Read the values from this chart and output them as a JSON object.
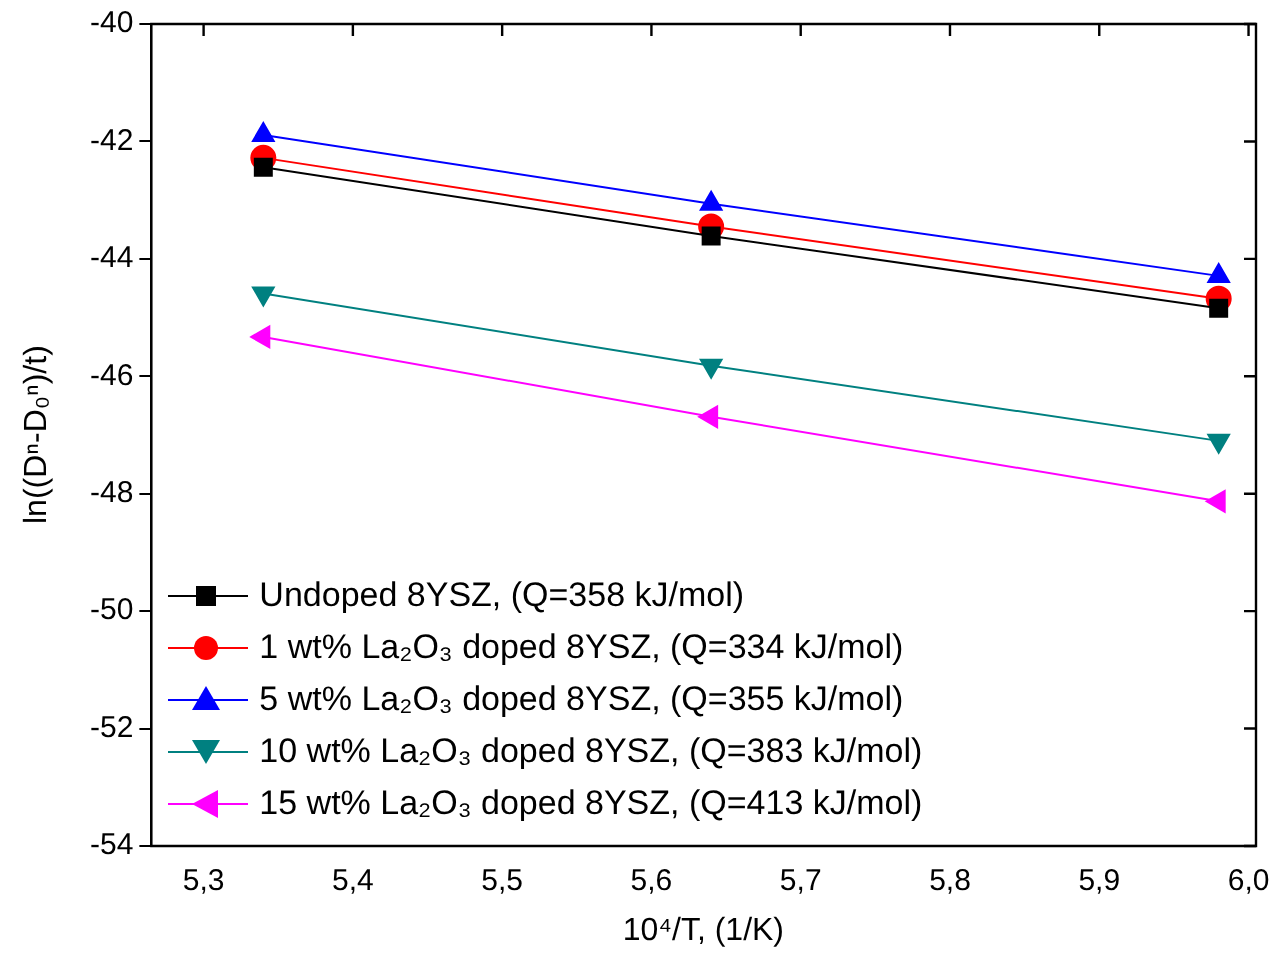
{
  "chart_data": {
    "type": "line",
    "xlabel": "10⁴/T, (1/K)",
    "ylabel": "ln((Dⁿ-D₀ⁿ)/t)",
    "x": [
      5.34,
      5.64,
      5.98
    ],
    "series": [
      {
        "name": "Undoped 8YSZ, (Q=358 kJ/mol)",
        "color": "#000000",
        "marker": "square",
        "values": [
          -42.44,
          -43.61,
          -44.84
        ]
      },
      {
        "name": "1 wt% La₂O₃ doped 8YSZ, (Q=334 kJ/mol)",
        "color": "#ff0000",
        "marker": "circle",
        "values": [
          -42.28,
          -43.45,
          -44.68
        ]
      },
      {
        "name": "5 wt% La₂O₃ doped 8YSZ, (Q=355 kJ/mol)",
        "color": "#0000ff",
        "marker": "triangle",
        "values": [
          -41.89,
          -43.06,
          -44.29
        ]
      },
      {
        "name": "10 wt% La₂O₃ doped 8YSZ, (Q=383 kJ/mol)",
        "color": "#008080",
        "marker": "triangle-down",
        "values": [
          -44.59,
          -45.82,
          -47.1
        ]
      },
      {
        "name": "15 wt% La₂O₃ doped 8YSZ, (Q=413 kJ/mol)",
        "color": "#ff00ff",
        "marker": "triangle-left",
        "values": [
          -45.33,
          -46.69,
          -48.13
        ]
      }
    ],
    "xlim": [
      5.265,
      6.005
    ],
    "xticks": [
      {
        "value": 5.3,
        "label": "5,3"
      },
      {
        "value": 5.4,
        "label": "5,4"
      },
      {
        "value": 5.5,
        "label": "5,5"
      },
      {
        "value": 5.6,
        "label": "5,6"
      },
      {
        "value": 5.7,
        "label": "5,7"
      },
      {
        "value": 5.8,
        "label": "5,8"
      },
      {
        "value": 5.9,
        "label": "5,9"
      },
      {
        "value": 6.0,
        "label": "6,0"
      }
    ],
    "ylim": [
      -54,
      -40
    ],
    "yticks": [
      -54,
      -52,
      -50,
      -48,
      -46,
      -44,
      -42,
      -40
    ],
    "grid": false,
    "legend": "bottom left",
    "line_style": "solid"
  }
}
